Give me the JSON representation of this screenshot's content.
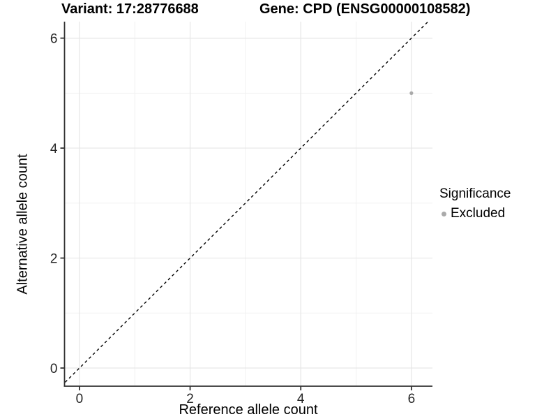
{
  "chart_data": {
    "type": "scatter",
    "title_left": "Variant: 17:28776688",
    "title_right": "Gene: CPD (ENSG00000108582)",
    "xlabel": "Reference allele count",
    "ylabel": "Alternative allele count",
    "xlim": [
      -0.27,
      6.38
    ],
    "ylim": [
      -0.33,
      6.3
    ],
    "x_major_ticks": [
      0,
      2,
      4,
      6
    ],
    "y_major_ticks": [
      0,
      2,
      4,
      6
    ],
    "x_minor_ticks": [
      1,
      3,
      5
    ],
    "y_minor_ticks": [
      1,
      3,
      5
    ],
    "grid": true,
    "reference_line": {
      "equation": "y = x",
      "style": "dashed",
      "color": "#000000"
    },
    "series": [
      {
        "name": "Excluded",
        "color": "#aaaaaa",
        "points": [
          [
            6,
            5
          ]
        ]
      }
    ],
    "legend": {
      "title": "Significance",
      "position": "right",
      "entries": [
        {
          "label": "Excluded",
          "color": "#aaaaaa"
        }
      ]
    },
    "colors": {
      "grid_major": "#e6e6e6",
      "grid_minor": "#f1f1f1",
      "axis_line": "#333333",
      "tick_text": "#262626",
      "background": "#ffffff"
    }
  }
}
